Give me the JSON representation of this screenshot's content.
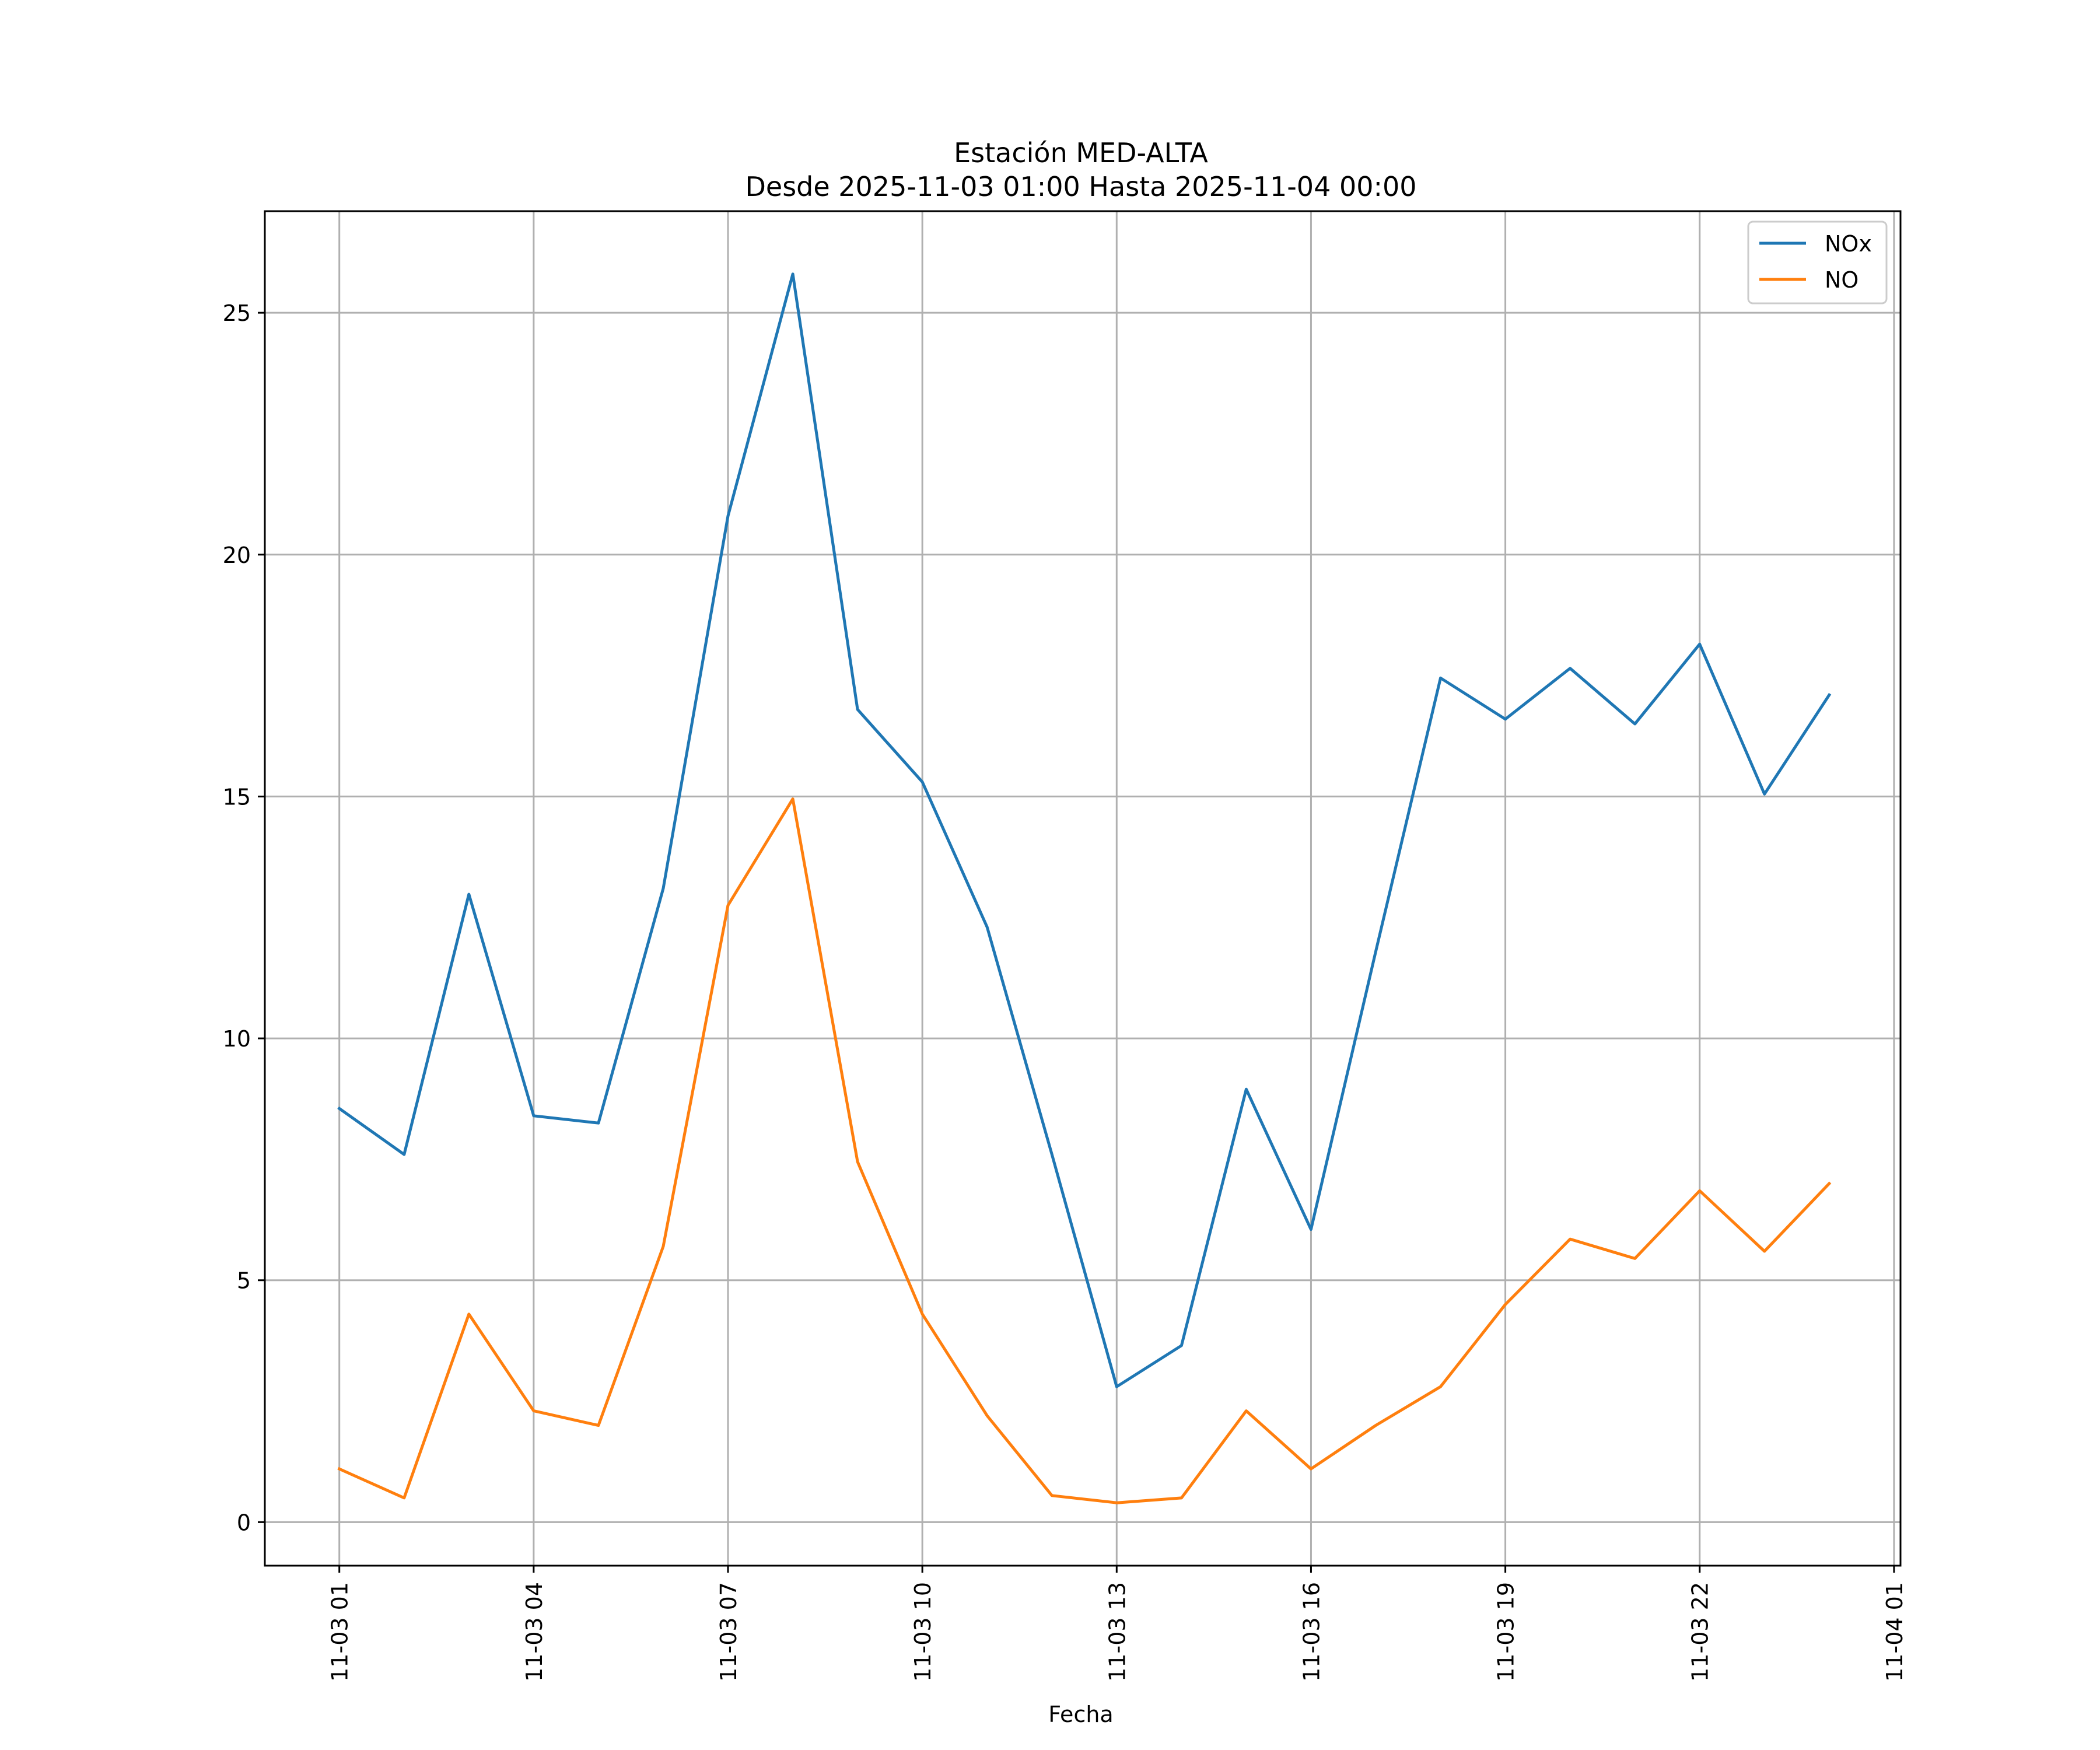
{
  "chart_data": {
    "type": "line",
    "title_line1": "Estación MED-ALTA",
    "title_line2": "Desde 2025-11-03 01:00 Hasta 2025-11-04 00:00",
    "xlabel": "Fecha",
    "ylabel": "",
    "x_hours": [
      1,
      2,
      3,
      4,
      5,
      6,
      7,
      8,
      9,
      10,
      11,
      12,
      13,
      14,
      15,
      16,
      17,
      18,
      19,
      20,
      21,
      22,
      23,
      24
    ],
    "x_range_hours": [
      -0.15,
      25.1
    ],
    "xticks": [
      {
        "hour": 1,
        "label": "11-03 01"
      },
      {
        "hour": 4,
        "label": "11-03 04"
      },
      {
        "hour": 7,
        "label": "11-03 07"
      },
      {
        "hour": 10,
        "label": "11-03 10"
      },
      {
        "hour": 13,
        "label": "11-03 13"
      },
      {
        "hour": 16,
        "label": "11-03 16"
      },
      {
        "hour": 19,
        "label": "11-03 19"
      },
      {
        "hour": 22,
        "label": "11-03 22"
      },
      {
        "hour": 25,
        "label": "11-04 01"
      }
    ],
    "yticks": [
      0,
      5,
      10,
      15,
      20,
      25
    ],
    "ylim": [
      -0.9,
      27.1
    ],
    "grid": true,
    "legend_position": "top-right",
    "series": [
      {
        "name": "NOx",
        "color": "#1f77b4",
        "values": [
          8.55,
          7.6,
          12.98,
          8.4,
          8.25,
          13.1,
          20.8,
          25.8,
          16.8,
          15.3,
          12.3,
          7.6,
          2.8,
          3.65,
          8.95,
          6.05,
          11.8,
          17.45,
          16.6,
          17.65,
          16.5,
          18.15,
          15.05,
          17.1
        ]
      },
      {
        "name": "NO",
        "color": "#ff7f0e",
        "values": [
          1.1,
          0.5,
          4.3,
          2.3,
          2.0,
          5.7,
          12.75,
          14.95,
          7.45,
          4.3,
          2.2,
          0.55,
          0.4,
          0.5,
          2.3,
          1.1,
          2.0,
          2.8,
          4.5,
          5.85,
          5.45,
          6.85,
          5.6,
          7.0
        ]
      }
    ]
  }
}
